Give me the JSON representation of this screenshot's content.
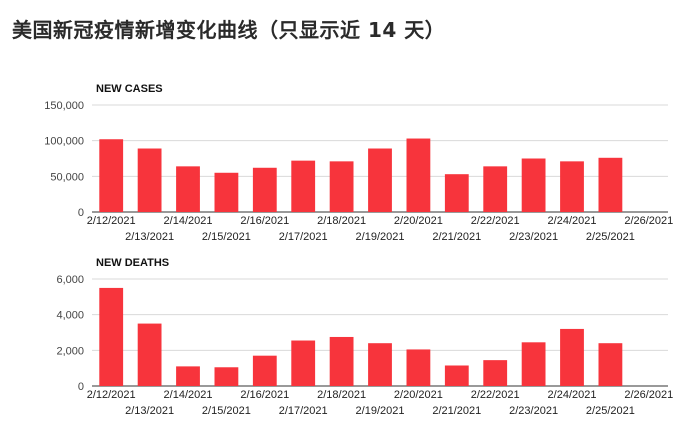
{
  "page": {
    "title": "美国新冠疫情新增变化曲线（只显示近 14 天）"
  },
  "chart_data": [
    {
      "type": "bar",
      "title": "NEW CASES",
      "xlabel": "",
      "ylabel": "",
      "categories": [
        "2/12/2021",
        "2/13/2021",
        "2/14/2021",
        "2/15/2021",
        "2/16/2021",
        "2/17/2021",
        "2/18/2021",
        "2/19/2021",
        "2/20/2021",
        "2/21/2021",
        "2/22/2021",
        "2/23/2021",
        "2/24/2021",
        "2/25/2021",
        "2/26/2021"
      ],
      "values": [
        102000,
        89000,
        64000,
        55000,
        62000,
        72000,
        71000,
        89000,
        103000,
        53000,
        64000,
        75000,
        71000,
        76000,
        null
      ],
      "yticks": [
        0,
        50000,
        100000,
        150000
      ],
      "ytick_labels": [
        "0",
        "50,000",
        "100,000",
        "150,000"
      ],
      "ylim": [
        0,
        150000
      ],
      "grid": true,
      "color": "#f7343c"
    },
    {
      "type": "bar",
      "title": "NEW DEATHS",
      "xlabel": "",
      "ylabel": "",
      "categories": [
        "2/12/2021",
        "2/13/2021",
        "2/14/2021",
        "2/15/2021",
        "2/16/2021",
        "2/17/2021",
        "2/18/2021",
        "2/19/2021",
        "2/20/2021",
        "2/21/2021",
        "2/22/2021",
        "2/23/2021",
        "2/24/2021",
        "2/25/2021",
        "2/26/2021"
      ],
      "values": [
        5500,
        3500,
        1100,
        1050,
        1700,
        2550,
        2750,
        2400,
        2050,
        1150,
        1450,
        2450,
        3200,
        2400,
        null
      ],
      "yticks": [
        0,
        2000,
        4000,
        6000
      ],
      "ytick_labels": [
        "0",
        "2,000",
        "4,000",
        "6,000"
      ],
      "ylim": [
        0,
        6000
      ],
      "grid": true,
      "color": "#f7343c"
    }
  ]
}
